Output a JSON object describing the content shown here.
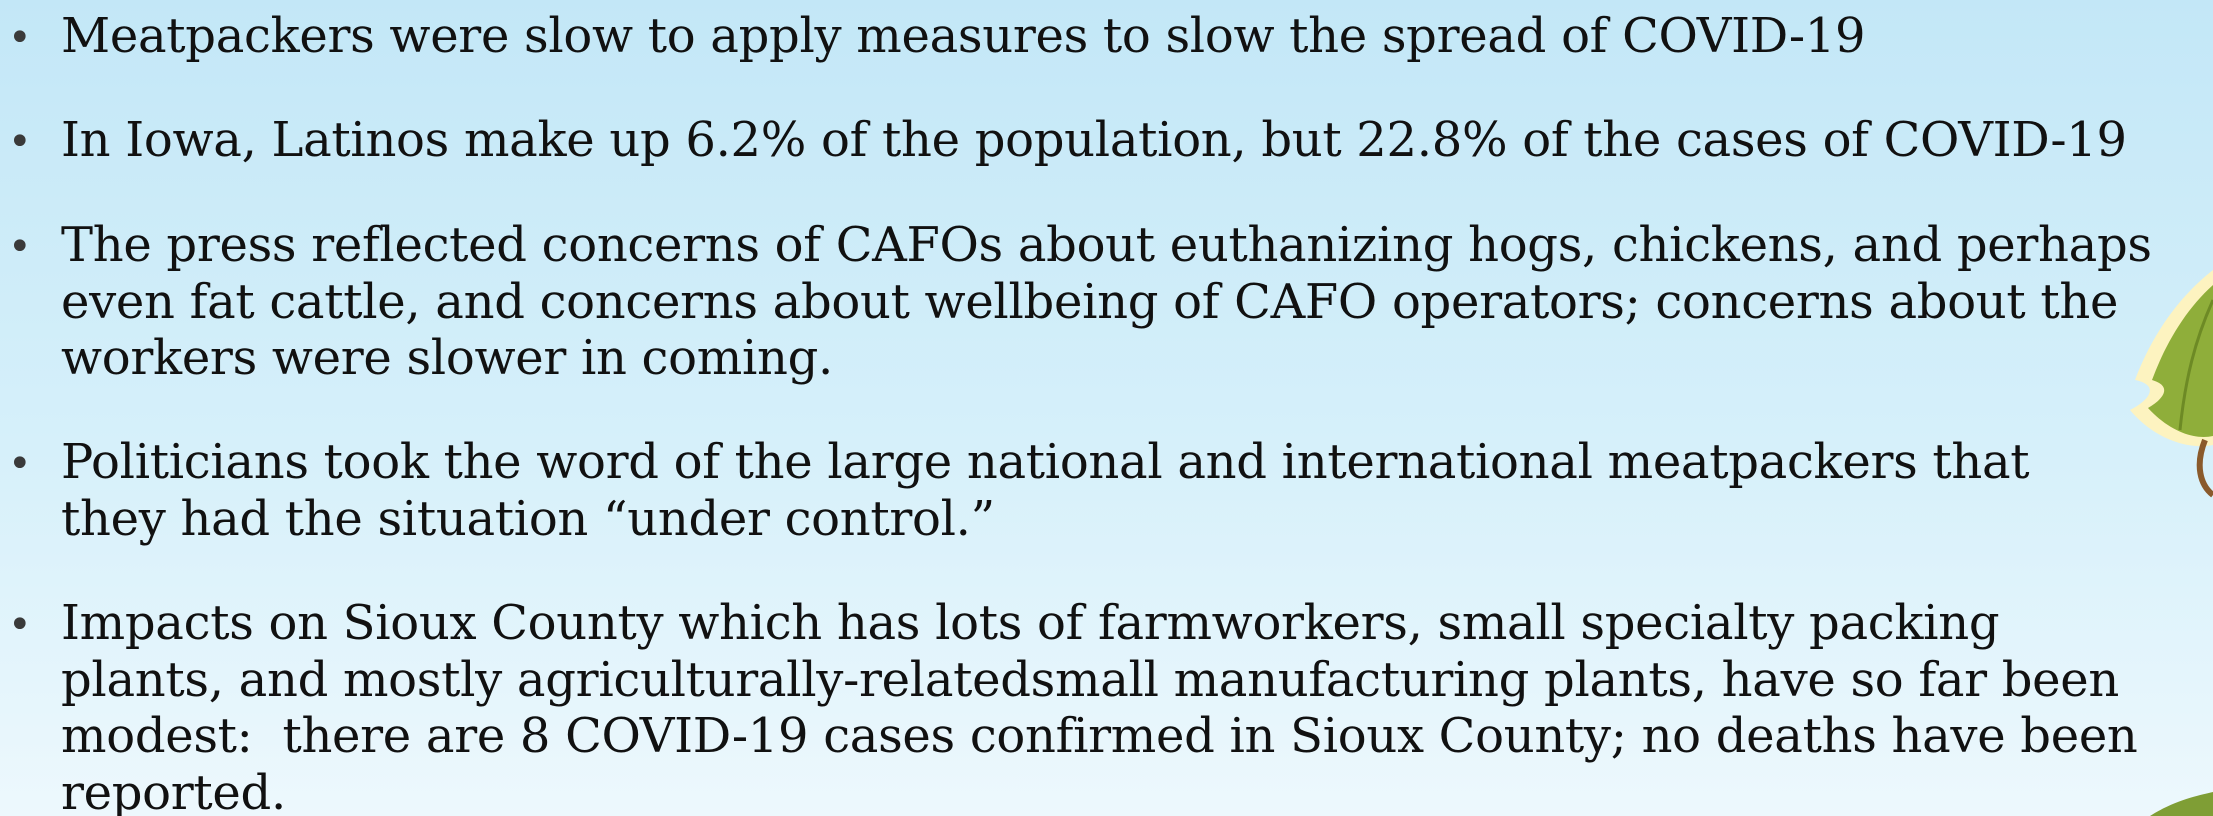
{
  "bullets": [
    {
      "lines": [
        "Meatpackers were slow to apply measures to slow the spread of COVID-19"
      ]
    },
    {
      "lines": [
        "In Iowa, Latinos make up 6.2% of the population, but 22.8% of the cases of COVID-19"
      ]
    },
    {
      "lines": [
        "The press reflected concerns of CAFOs about euthanizing hogs, chickens, and perhaps",
        "even fat cattle, and concerns about wellbeing of CAFO operators; concerns about the",
        "workers were slower in coming."
      ]
    },
    {
      "lines": [
        "Politicians took the word of the large national and international meatpackers that",
        "they had the situation “under control.”"
      ]
    },
    {
      "lines": [
        "Impacts on Sioux County which has lots of farmworkers, small specialty packing",
        "plants, and mostly agriculturally-relatedsmall manufacturing plants, have so far been",
        "modest:  there are 8 COVID-19 cases confirmed in Sioux County; no deaths have been",
        "reported."
      ]
    }
  ]
}
